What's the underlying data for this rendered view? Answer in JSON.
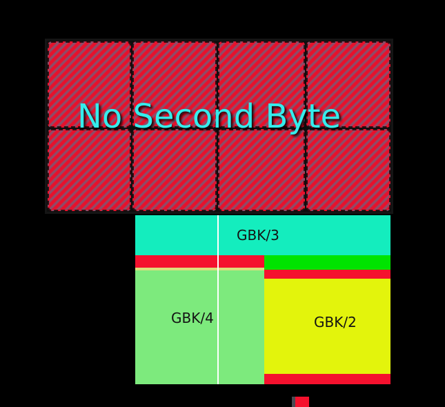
{
  "background": "#000000",
  "title": {
    "text": "No Second Byte",
    "color": "#35ecec"
  },
  "hatch": {
    "stripe_red": "#e8102b",
    "stripe_purple": "#8a4e6b",
    "grid_cells": 8,
    "grid_columns": 4,
    "grid_rows": 2
  },
  "regions": {
    "gbk3": {
      "label": "GBK/3",
      "fill": "#14edbe"
    },
    "gbk4": {
      "label": "GBK/4",
      "fill": "#7dea7d"
    },
    "gbk2": {
      "label": "GBK/2",
      "fill": "#e3f40c"
    }
  },
  "strips": {
    "red_left": {
      "color": "#f5112e"
    },
    "khaki_line": {
      "color": "#dcdf7c"
    },
    "green_right": {
      "color": "#00e400"
    },
    "red_right": {
      "color": "#f5112e"
    },
    "red_bottom": {
      "color": "#f5112e"
    }
  },
  "divider": {
    "color": "#ffffff"
  },
  "legend": {
    "swatch_color": "#f5102c",
    "swatch_shadow_color": "#4a4a52"
  }
}
